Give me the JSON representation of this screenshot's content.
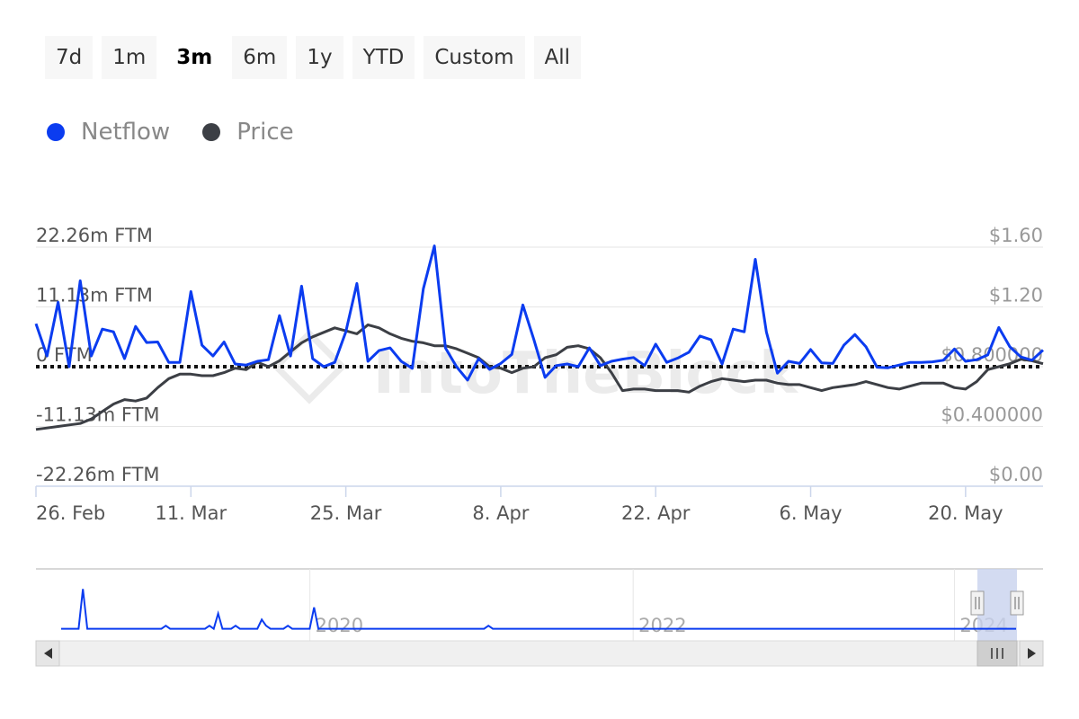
{
  "range_buttons": {
    "items": [
      {
        "label": "7d"
      },
      {
        "label": "1m"
      },
      {
        "label": "3m",
        "active": true
      },
      {
        "label": "6m"
      },
      {
        "label": "1y"
      },
      {
        "label": "YTD"
      },
      {
        "label": "Custom"
      },
      {
        "label": "All"
      }
    ]
  },
  "legend": {
    "items": [
      {
        "label": "Netflow",
        "color": "#0b3cf0"
      },
      {
        "label": "Price",
        "color": "#3c3f45"
      }
    ]
  },
  "watermark": "IntoTheBlock",
  "chart_data": {
    "type": "line",
    "x_tick_labels": [
      "26. Feb",
      "11. Mar",
      "25. Mar",
      "8. Apr",
      "22. Apr",
      "6. May",
      "20. May"
    ],
    "y_left": {
      "tick_labels": [
        "22.26m FTM",
        "11.13m FTM",
        "0 FTM",
        "-11.13m FTM",
        "-22.26m FTM"
      ],
      "tick_values": [
        22.26,
        11.13,
        0,
        -11.13,
        -22.26
      ],
      "range": [
        -22.26,
        22.26
      ]
    },
    "y_right": {
      "tick_labels": [
        "$1.60",
        "$1.20",
        "$0.800000",
        "$0.400000",
        "$0.00"
      ],
      "tick_values": [
        1.6,
        1.2,
        0.8,
        0.4,
        0
      ],
      "range": [
        0,
        1.6
      ]
    },
    "x_range": [
      0,
      91
    ],
    "zero_line": "dotted",
    "series": [
      {
        "name": "Netflow",
        "axis": "left",
        "color": "#0b3cf0",
        "values": [
          8.0,
          2.0,
          12.0,
          0.0,
          16.0,
          2.0,
          7.0,
          6.5,
          1.5,
          7.5,
          4.5,
          4.6,
          0.8,
          0.8,
          14.0,
          4.0,
          2.0,
          4.6,
          0.5,
          0.3,
          1.0,
          1.3,
          9.5,
          2.0,
          15.0,
          1.5,
          0.0,
          0.8,
          6.5,
          15.5,
          1.0,
          3.0,
          3.5,
          1.0,
          -0.3,
          14.5,
          22.5,
          3.5,
          0.0,
          -2.5,
          1.5,
          -0.5,
          0.6,
          2.3,
          11.5,
          5.0,
          -2.0,
          0.2,
          0.5,
          0.0,
          3.5,
          0.2,
          1.0,
          1.4,
          1.7,
          0.2,
          4.2,
          0.8,
          1.6,
          2.7,
          5.7,
          5.0,
          0.5,
          7.0,
          6.5,
          20.0,
          6.5,
          -1.2,
          1.0,
          0.6,
          3.2,
          0.7,
          0.6,
          4.0,
          6.0,
          3.7,
          -0.1,
          -0.2,
          0.3,
          0.8,
          0.8,
          0.9,
          1.2,
          3.3,
          1.0,
          1.3,
          2.2,
          7.3,
          3.7,
          1.8,
          1.2,
          3.1
        ]
      },
      {
        "name": "Price",
        "axis": "right",
        "color": "#3c3f45",
        "values": [
          0.38,
          0.39,
          0.4,
          0.41,
          0.42,
          0.45,
          0.5,
          0.55,
          0.58,
          0.57,
          0.59,
          0.66,
          0.72,
          0.75,
          0.75,
          0.74,
          0.74,
          0.76,
          0.79,
          0.78,
          0.83,
          0.8,
          0.84,
          0.9,
          0.96,
          1.0,
          1.03,
          1.06,
          1.04,
          1.02,
          1.08,
          1.06,
          1.02,
          0.99,
          0.97,
          0.96,
          0.94,
          0.94,
          0.92,
          0.89,
          0.86,
          0.8,
          0.79,
          0.76,
          0.79,
          0.8,
          0.86,
          0.88,
          0.93,
          0.94,
          0.92,
          0.86,
          0.76,
          0.64,
          0.65,
          0.65,
          0.64,
          0.64,
          0.64,
          0.63,
          0.67,
          0.7,
          0.72,
          0.71,
          0.7,
          0.71,
          0.71,
          0.69,
          0.68,
          0.68,
          0.66,
          0.64,
          0.66,
          0.67,
          0.68,
          0.7,
          0.68,
          0.66,
          0.65,
          0.67,
          0.69,
          0.69,
          0.69,
          0.66,
          0.65,
          0.7,
          0.78,
          0.8,
          0.82,
          0.85,
          0.84,
          0.82
        ]
      }
    ]
  },
  "navigator": {
    "year_labels": [
      "2020",
      "2022",
      "2024"
    ],
    "series_color": "#0b3cf0",
    "values": [
      0.05,
      0.05,
      0.05,
      0.05,
      0.05,
      0.7,
      0.05,
      0.05,
      0.05,
      0.05,
      0.05,
      0.05,
      0.05,
      0.05,
      0.05,
      0.05,
      0.05,
      0.05,
      0.05,
      0.05,
      0.05,
      0.05,
      0.05,
      0.05,
      0.1,
      0.05,
      0.05,
      0.05,
      0.05,
      0.05,
      0.05,
      0.05,
      0.05,
      0.05,
      0.1,
      0.05,
      0.3,
      0.05,
      0.05,
      0.05,
      0.1,
      0.05,
      0.05,
      0.05,
      0.05,
      0.05,
      0.2,
      0.1,
      0.05,
      0.05,
      0.05,
      0.05,
      0.1,
      0.05,
      0.05,
      0.05,
      0.05,
      0.05,
      0.4,
      0.05,
      0.05,
      0.05,
      0.05,
      0.05,
      0.05,
      0.05,
      0.05,
      0.05,
      0.05,
      0.05,
      0.05,
      0.05,
      0.05,
      0.05,
      0.05,
      0.05,
      0.05,
      0.05,
      0.05,
      0.05,
      0.05,
      0.05,
      0.05,
      0.05,
      0.05,
      0.05,
      0.05,
      0.05,
      0.05,
      0.05,
      0.05,
      0.05,
      0.05,
      0.05,
      0.05,
      0.05,
      0.05,
      0.05,
      0.1,
      0.05,
      0.05,
      0.05,
      0.05,
      0.05,
      0.05,
      0.05,
      0.05,
      0.05,
      0.05,
      0.05,
      0.05,
      0.05,
      0.05,
      0.05,
      0.05,
      0.05,
      0.05,
      0.05,
      0.05,
      0.05,
      0.05,
      0.05,
      0.05,
      0.05,
      0.05,
      0.05,
      0.05,
      0.05,
      0.05,
      0.05,
      0.05,
      0.05,
      0.05,
      0.05,
      0.05,
      0.05,
      0.05,
      0.05,
      0.05,
      0.05,
      0.05,
      0.05,
      0.05,
      0.05,
      0.05,
      0.05,
      0.05,
      0.05,
      0.05,
      0.05,
      0.05,
      0.05,
      0.05,
      0.05,
      0.05,
      0.05,
      0.05,
      0.05,
      0.05,
      0.05,
      0.05,
      0.05,
      0.05,
      0.05,
      0.05,
      0.05,
      0.05,
      0.05,
      0.05,
      0.05,
      0.05,
      0.05,
      0.05,
      0.05,
      0.05,
      0.05,
      0.05,
      0.05,
      0.05,
      0.05,
      0.05,
      0.05,
      0.05,
      0.05,
      0.05,
      0.05,
      0.05,
      0.05,
      0.05,
      0.05,
      0.05,
      0.05,
      0.05,
      0.05,
      0.05,
      0.05,
      0.05,
      0.05,
      0.05,
      0.05,
      0.05,
      0.05,
      0.05,
      0.05,
      0.05,
      0.05,
      0.05,
      0.05,
      0.05,
      0.05,
      0.05,
      0.05,
      0.05,
      0.05,
      0.05,
      0.05,
      0.05,
      0.05,
      0.05,
      0.05
    ]
  }
}
